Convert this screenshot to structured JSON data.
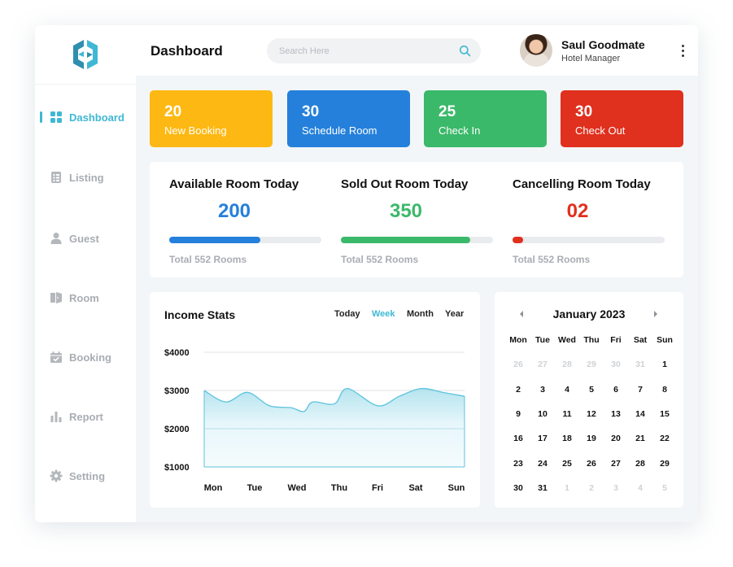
{
  "header": {
    "title": "Dashboard",
    "search_placeholder": "Search Here",
    "user_name": "Saul Goodmate",
    "user_role": "Hotel Manager"
  },
  "sidebar": {
    "items": [
      {
        "label": "Dashboard",
        "icon": "grid-icon",
        "active": true
      },
      {
        "label": "Listing",
        "icon": "list-icon",
        "active": false
      },
      {
        "label": "Guest",
        "icon": "user-icon",
        "active": false
      },
      {
        "label": "Room",
        "icon": "door-icon",
        "active": false
      },
      {
        "label": "Booking",
        "icon": "calendar-check-icon",
        "active": false
      },
      {
        "label": "Report",
        "icon": "bar-chart-icon",
        "active": false
      },
      {
        "label": "Setting",
        "icon": "gear-icon",
        "active": false
      }
    ]
  },
  "stats": [
    {
      "value": "20",
      "label": "New Booking",
      "color": "#fdb813"
    },
    {
      "value": "30",
      "label": "Schedule Room",
      "color": "#2580db"
    },
    {
      "value": "25",
      "label": "Check In",
      "color": "#3bb96a"
    },
    {
      "value": "30",
      "label": "Check Out",
      "color": "#e0301e"
    }
  ],
  "rooms": [
    {
      "title": "Available Room Today",
      "value": "200",
      "total": "Total 552 Rooms",
      "progress": 0.6,
      "color": "#2580db"
    },
    {
      "title": "Sold Out Room Today",
      "value": "350",
      "total": "Total 552 Rooms",
      "progress": 0.85,
      "color": "#3bb96a"
    },
    {
      "title": "Cancelling Room Today",
      "value": "02",
      "total": "Total 552 Rooms",
      "progress": 0.07,
      "color": "#e0301e"
    }
  ],
  "income": {
    "title": "Income Stats",
    "ranges": [
      "Today",
      "Week",
      "Month",
      "Year"
    ],
    "active_range": "Week"
  },
  "chart_data": {
    "type": "area",
    "title": "Income Stats",
    "categories": [
      "Mon",
      "Tue",
      "Wed",
      "Thu",
      "Fri",
      "Sat",
      "Sun"
    ],
    "y_ticks": [
      "$4000",
      "$3000",
      "$2000",
      "$1000"
    ],
    "ylim": [
      1000,
      4000
    ],
    "x": [
      0,
      0.5,
      1,
      1.5,
      2,
      2.3,
      2.5,
      3,
      3.3,
      4,
      4.5,
      5,
      5.5,
      6
    ],
    "values": [
      3000,
      2700,
      2950,
      2600,
      2550,
      2450,
      2700,
      2650,
      3050,
      2600,
      2850,
      3050,
      2950,
      2850
    ],
    "color": "#5cc3dd",
    "grid": true
  },
  "calendar": {
    "month": "January 2023",
    "weekdays": [
      "Mon",
      "Tue",
      "Wed",
      "Thu",
      "Fri",
      "Sat",
      "Sun"
    ],
    "weeks": [
      [
        {
          "d": "26",
          "m": true
        },
        {
          "d": "27",
          "m": true
        },
        {
          "d": "28",
          "m": true
        },
        {
          "d": "29",
          "m": true
        },
        {
          "d": "30",
          "m": true
        },
        {
          "d": "31",
          "m": true
        },
        {
          "d": "1",
          "m": false
        }
      ],
      [
        {
          "d": "2",
          "m": false
        },
        {
          "d": "3",
          "m": false
        },
        {
          "d": "4",
          "m": false
        },
        {
          "d": "5",
          "m": false
        },
        {
          "d": "6",
          "m": false
        },
        {
          "d": "7",
          "m": false
        },
        {
          "d": "8",
          "m": false
        }
      ],
      [
        {
          "d": "9",
          "m": false
        },
        {
          "d": "10",
          "m": false
        },
        {
          "d": "11",
          "m": false
        },
        {
          "d": "12",
          "m": false
        },
        {
          "d": "13",
          "m": false
        },
        {
          "d": "14",
          "m": false
        },
        {
          "d": "15",
          "m": false
        }
      ],
      [
        {
          "d": "16",
          "m": false
        },
        {
          "d": "17",
          "m": false
        },
        {
          "d": "18",
          "m": false
        },
        {
          "d": "19",
          "m": false
        },
        {
          "d": "20",
          "m": false
        },
        {
          "d": "21",
          "m": false
        },
        {
          "d": "22",
          "m": false
        }
      ],
      [
        {
          "d": "23",
          "m": false
        },
        {
          "d": "24",
          "m": false
        },
        {
          "d": "25",
          "m": false
        },
        {
          "d": "26",
          "m": false
        },
        {
          "d": "27",
          "m": false
        },
        {
          "d": "28",
          "m": false
        },
        {
          "d": "29",
          "m": false
        }
      ],
      [
        {
          "d": "30",
          "m": false
        },
        {
          "d": "31",
          "m": false
        },
        {
          "d": "1",
          "m": true
        },
        {
          "d": "2",
          "m": true
        },
        {
          "d": "3",
          "m": true
        },
        {
          "d": "4",
          "m": true
        },
        {
          "d": "5",
          "m": true
        }
      ]
    ]
  }
}
